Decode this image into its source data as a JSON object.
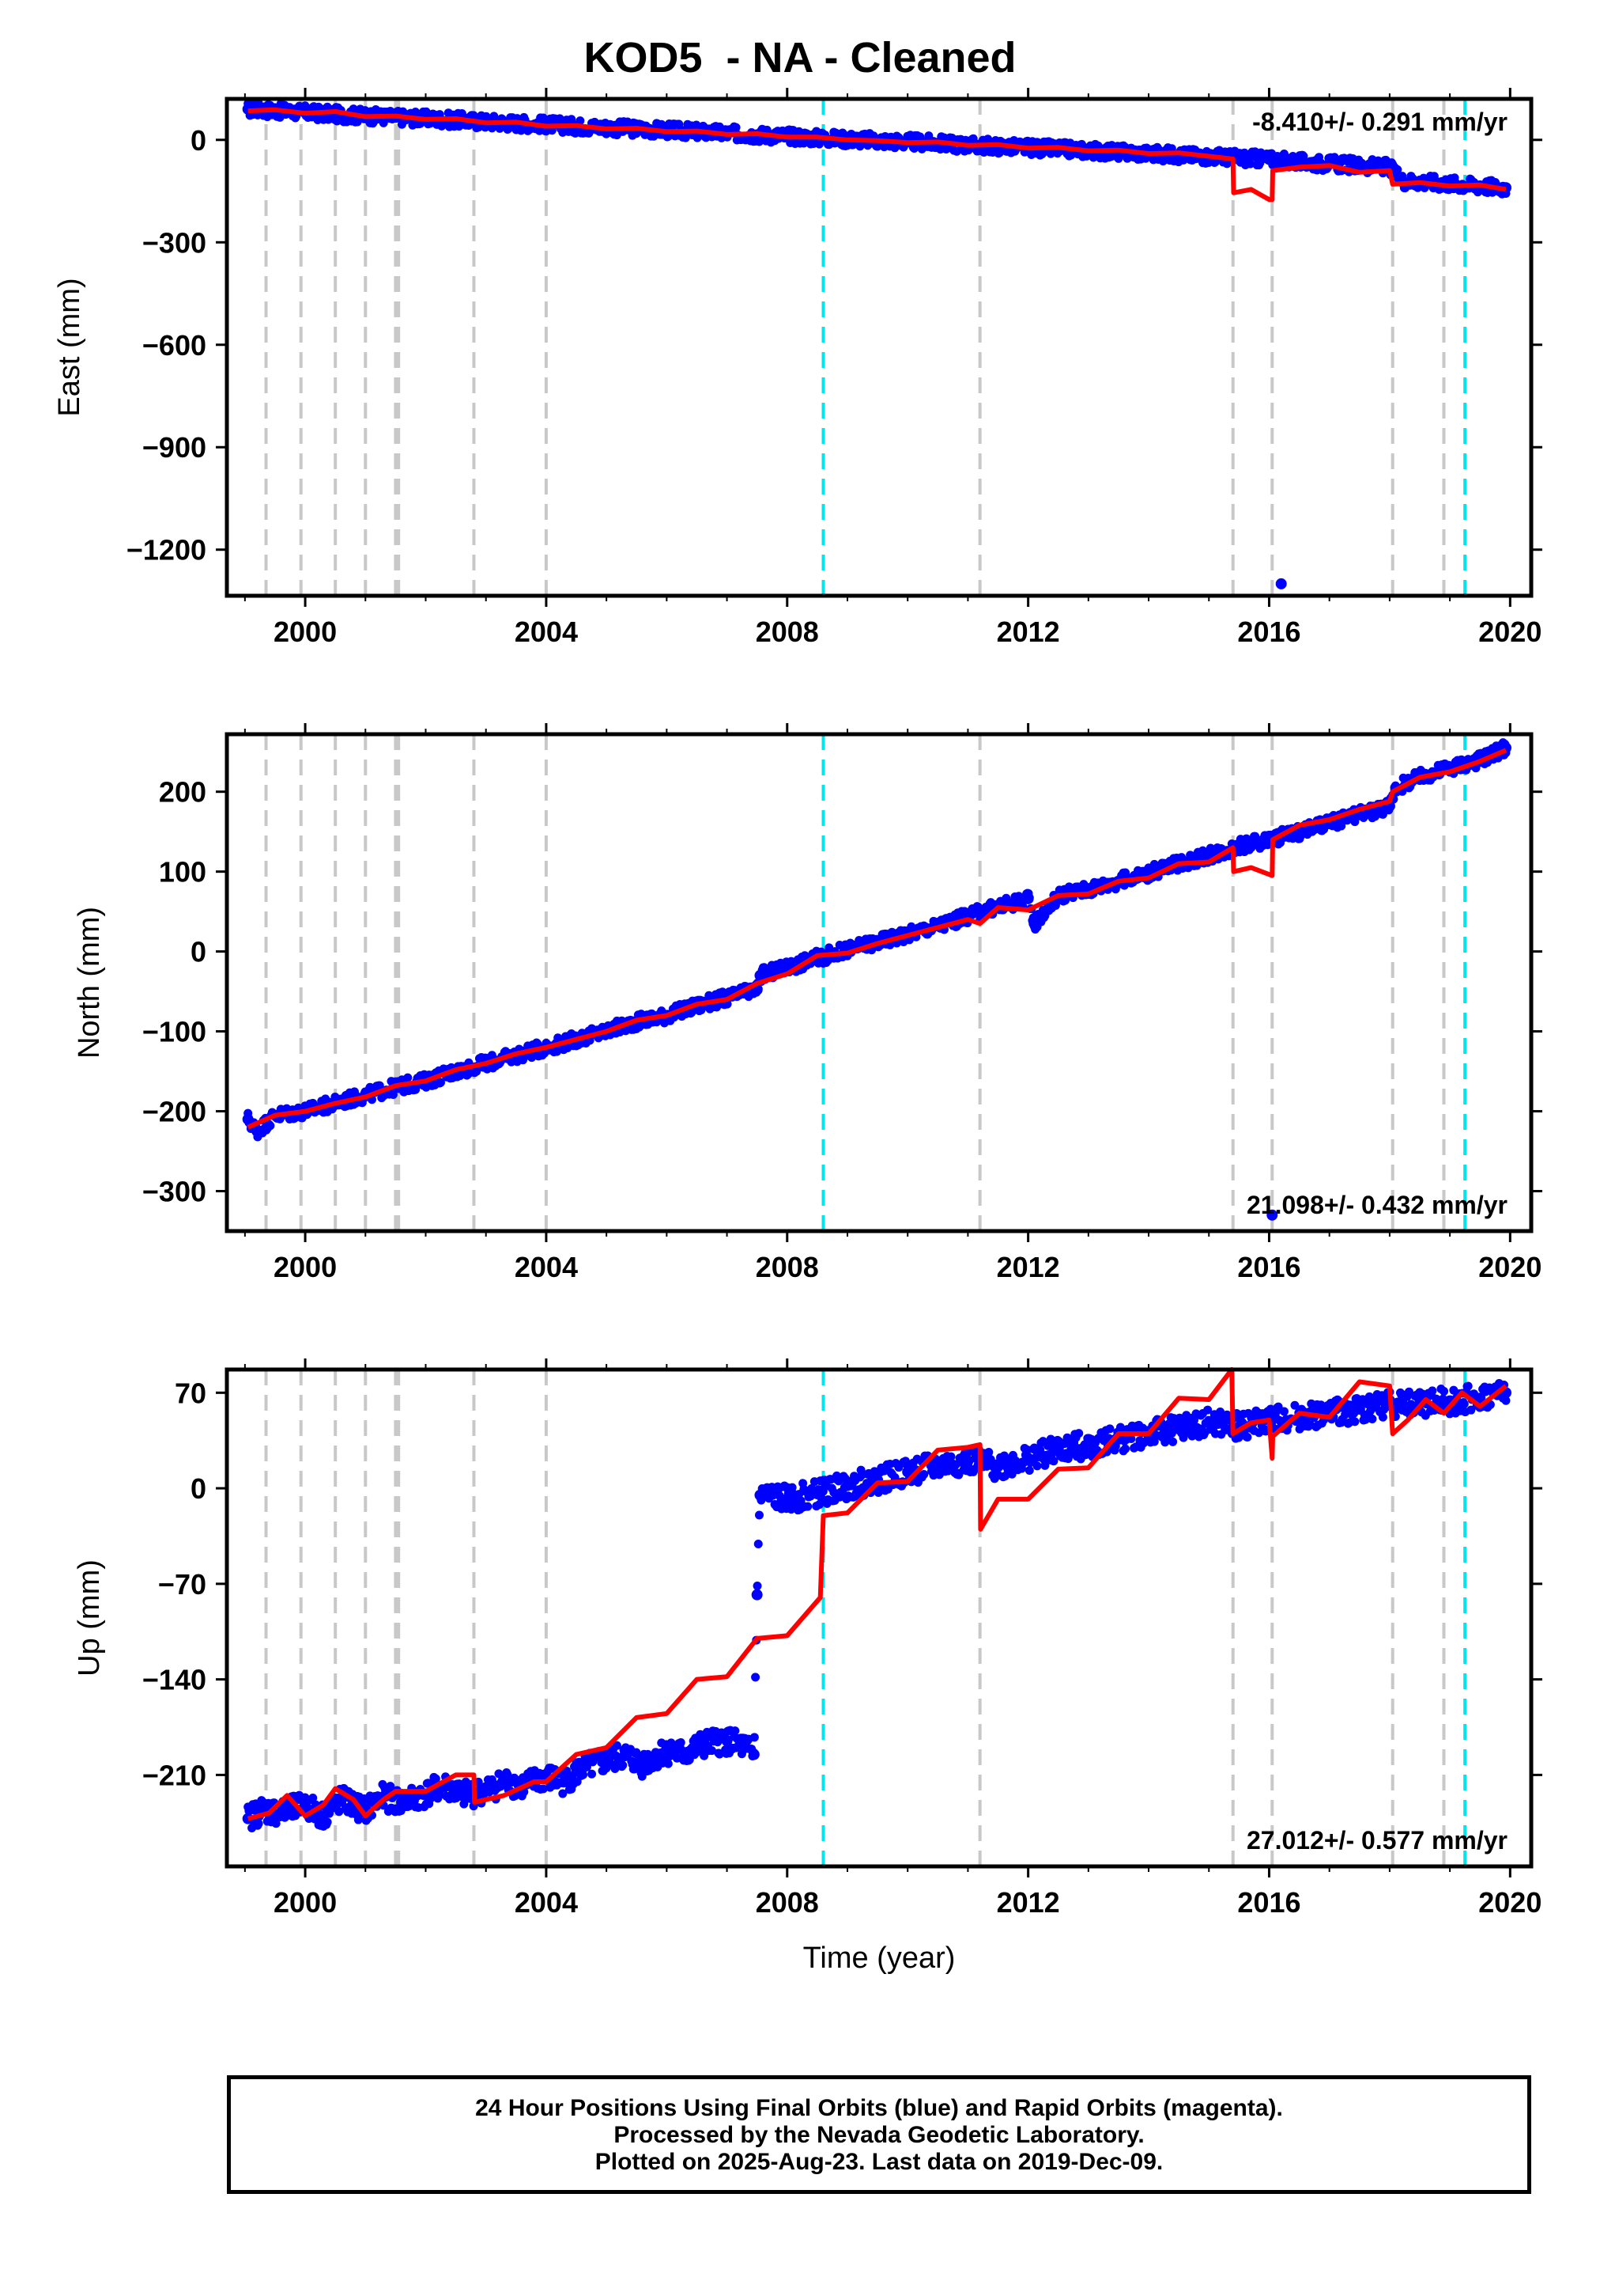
{
  "title": "KOD5  - NA - Cleaned",
  "caption": [
    "24 Hour Positions Using Final Orbits (blue) and Rapid Orbits (magenta).",
    "Processed by the Nevada Geodetic Laboratory.",
    "Plotted on 2025-Aug-23. Last data on 2019-Dec-09."
  ],
  "colors": {
    "final_orbits": "#0000ff",
    "model": "#ff0000",
    "dashed_gray": "#c8c8c8",
    "dashed_cyan": "#00e5ee"
  },
  "chart_data": [
    {
      "type": "scatter",
      "id": "east",
      "ylabel": "East (mm)",
      "xlabel": "",
      "rate": "-8.410+/- 0.291 mm/yr",
      "rate_position": "top-right",
      "xlim": [
        1998.7,
        2020.35
      ],
      "ylim": [
        -1335,
        120
      ],
      "xticks": [
        2000,
        2004,
        2008,
        2012,
        2016,
        2020
      ],
      "yticks": [
        0,
        -300,
        -600,
        -900,
        -1200
      ],
      "series": [
        {
          "kind": "points",
          "x": [
            1999.05,
            1999.3,
            1999.6,
            2000.0,
            2000.5,
            2001.0,
            2001.5,
            2002.0,
            2002.5,
            2003.0,
            2003.5,
            2004.0,
            2004.5,
            2005.0,
            2005.5,
            2006.0,
            2006.5,
            2007.0,
            2007.5,
            2008.0,
            2008.5,
            2009.0,
            2009.5,
            2010.0,
            2010.5,
            2011.0,
            2011.5,
            2012.0,
            2012.5,
            2013.0,
            2013.5,
            2014.0,
            2014.5,
            2015.0,
            2015.5,
            2016.0,
            2016.2,
            2016.5,
            2017.0,
            2017.5,
            2018.0,
            2018.2,
            2018.5,
            2019.0,
            2019.5,
            2019.93
          ],
          "y": [
            90,
            88,
            85,
            80,
            75,
            70,
            66,
            62,
            58,
            53,
            49,
            45,
            40,
            36,
            32,
            28,
            24,
            19,
            15,
            11,
            6,
            2,
            -2,
            -6,
            -10,
            -15,
            -19,
            -23,
            -27,
            -31,
            -36,
            -40,
            -44,
            -48,
            -53,
            -57,
            -1300,
            -65,
            -70,
            -75,
            -80,
            -120,
            -122,
            -128,
            -135,
            -140
          ]
        },
        {
          "kind": "model",
          "x": [
            1999.05,
            1999.5,
            2000.0,
            2000.5,
            2001.0,
            2001.5,
            2002.0,
            2002.5,
            2003.0,
            2003.5,
            2004.0,
            2004.5,
            2005.0,
            2005.5,
            2006.0,
            2006.5,
            2007.0,
            2007.5,
            2008.0,
            2008.5,
            2009.0,
            2009.5,
            2010.0,
            2010.5,
            2011.0,
            2011.5,
            2012.0,
            2012.5,
            2013.0,
            2013.5,
            2014.0,
            2014.5,
            2015.0,
            2015.4,
            2015.41,
            2015.7,
            2016.0,
            2016.05,
            2016.06,
            2016.5,
            2017.0,
            2017.5,
            2018.0,
            2018.05,
            2018.5,
            2019.0,
            2019.5,
            2019.93
          ],
          "y": [
            85,
            88,
            78,
            83,
            68,
            70,
            60,
            62,
            50,
            52,
            40,
            42,
            32,
            34,
            24,
            26,
            16,
            18,
            8,
            8,
            0,
            -2,
            -8,
            -6,
            -16,
            -14,
            -24,
            -22,
            -32,
            -30,
            -40,
            -38,
            -48,
            -56,
            -155,
            -145,
            -175,
            -175,
            -90,
            -80,
            -75,
            -95,
            -90,
            -130,
            -125,
            -135,
            -132,
            -145
          ]
        }
      ],
      "vlines_gray": [
        1999.35,
        1999.93,
        2000.5,
        2001.0,
        2001.5,
        2001.55,
        2002.8,
        2004.0,
        2011.2,
        2015.4,
        2016.05,
        2018.05,
        2018.9
      ],
      "vlines_cyan": [
        2008.6,
        2019.25
      ]
    },
    {
      "type": "scatter",
      "id": "north",
      "ylabel": "North (mm)",
      "xlabel": "",
      "rate": "21.098+/- 0.432 mm/yr",
      "rate_position": "bottom-right",
      "xlim": [
        1998.7,
        2020.35
      ],
      "ylim": [
        -350,
        272
      ],
      "xticks": [
        2000,
        2004,
        2008,
        2012,
        2016,
        2020
      ],
      "yticks": [
        200,
        100,
        0,
        -100,
        -200,
        -300
      ],
      "series": [
        {
          "kind": "points",
          "x": [
            1999.05,
            1999.2,
            1999.5,
            2000.0,
            2000.5,
            2001.0,
            2001.5,
            2002.0,
            2002.5,
            2003.0,
            2003.5,
            2004.0,
            2004.5,
            2005.0,
            2005.5,
            2006.0,
            2006.5,
            2007.0,
            2007.5,
            2007.55,
            2008.0,
            2008.5,
            2009.0,
            2009.5,
            2010.0,
            2010.5,
            2011.0,
            2011.5,
            2012.0,
            2012.1,
            2012.5,
            2013.0,
            2013.5,
            2014.0,
            2014.5,
            2015.0,
            2015.5,
            2016.0,
            2016.05,
            2016.5,
            2017.0,
            2017.5,
            2018.0,
            2018.1,
            2018.5,
            2019.0,
            2019.5,
            2019.93
          ],
          "y": [
            -210,
            -225,
            -205,
            -200,
            -190,
            -180,
            -170,
            -162,
            -150,
            -140,
            -130,
            -120,
            -110,
            -100,
            -88,
            -80,
            -68,
            -58,
            -48,
            -30,
            -20,
            -8,
            2,
            12,
            22,
            32,
            44,
            56,
            66,
            35,
            70,
            78,
            88,
            98,
            110,
            120,
            132,
            140,
            -330,
            150,
            160,
            172,
            182,
            205,
            218,
            230,
            240,
            255
          ]
        },
        {
          "kind": "model",
          "x": [
            1999.05,
            1999.5,
            2000.0,
            2000.5,
            2001.0,
            2001.5,
            2002.0,
            2002.5,
            2003.0,
            2003.5,
            2004.0,
            2004.5,
            2005.0,
            2005.5,
            2006.0,
            2006.5,
            2007.0,
            2007.5,
            2008.0,
            2008.5,
            2009.0,
            2009.5,
            2010.0,
            2010.5,
            2011.0,
            2011.2,
            2011.5,
            2012.0,
            2012.5,
            2013.0,
            2013.5,
            2014.0,
            2014.5,
            2015.0,
            2015.4,
            2015.41,
            2015.7,
            2016.05,
            2016.06,
            2016.5,
            2017.0,
            2017.5,
            2018.0,
            2018.05,
            2018.5,
            2019.0,
            2019.5,
            2019.93
          ],
          "y": [
            -220,
            -205,
            -200,
            -190,
            -182,
            -168,
            -162,
            -148,
            -140,
            -128,
            -120,
            -110,
            -100,
            -86,
            -80,
            -66,
            -60,
            -40,
            -28,
            -5,
            -2,
            10,
            20,
            30,
            40,
            35,
            55,
            52,
            70,
            72,
            88,
            92,
            110,
            112,
            130,
            100,
            105,
            95,
            140,
            158,
            165,
            178,
            188,
            200,
            218,
            225,
            238,
            252
          ]
        }
      ],
      "vlines_gray": [
        1999.35,
        1999.93,
        2000.5,
        2001.0,
        2001.5,
        2001.55,
        2002.8,
        2004.0,
        2011.2,
        2015.4,
        2016.05,
        2018.05,
        2018.9
      ],
      "vlines_cyan": [
        2008.6,
        2019.25
      ]
    },
    {
      "type": "scatter",
      "id": "up",
      "ylabel": "Up (mm)",
      "xlabel": "Time (year)",
      "rate": "27.012+/- 0.577 mm/yr",
      "rate_position": "bottom-right",
      "xlim": [
        1998.7,
        2020.35
      ],
      "ylim": [
        -277,
        87
      ],
      "xticks": [
        2000,
        2004,
        2008,
        2012,
        2016,
        2020
      ],
      "yticks": [
        70,
        0,
        -70,
        -140,
        -210
      ],
      "series": [
        {
          "kind": "points",
          "x": [
            1999.05,
            1999.3,
            1999.6,
            2000.0,
            2000.3,
            2000.6,
            2001.0,
            2001.3,
            2001.6,
            2002.0,
            2002.3,
            2002.6,
            2003.0,
            2003.3,
            2003.6,
            2004.0,
            2004.3,
            2004.6,
            2005.0,
            2005.3,
            2005.6,
            2006.0,
            2006.3,
            2006.6,
            2007.0,
            2007.3,
            2007.45,
            2007.5,
            2007.55,
            2008.0,
            2008.5,
            2009.0,
            2009.5,
            2010.0,
            2010.5,
            2011.0,
            2011.5,
            2012.0,
            2012.5,
            2013.0,
            2013.5,
            2014.0,
            2014.5,
            2015.0,
            2015.5,
            2016.0,
            2016.5,
            2017.0,
            2017.5,
            2018.0,
            2018.5,
            2019.0,
            2019.5,
            2019.93
          ],
          "y": [
            -242,
            -235,
            -238,
            -232,
            -240,
            -228,
            -236,
            -226,
            -230,
            -224,
            -218,
            -225,
            -222,
            -215,
            -218,
            -212,
            -215,
            -205,
            -200,
            -196,
            -202,
            -192,
            -195,
            -188,
            -185,
            -190,
            -195,
            -78,
            -5,
            -8,
            -4,
            2,
            6,
            12,
            16,
            20,
            16,
            22,
            28,
            32,
            36,
            40,
            44,
            48,
            45,
            50,
            52,
            55,
            58,
            62,
            62,
            64,
            66,
            70
          ]
        },
        {
          "kind": "model",
          "x": [
            1999.05,
            1999.4,
            1999.7,
            2000.0,
            2000.3,
            2000.5,
            2000.8,
            2001.0,
            2001.3,
            2001.5,
            2002.0,
            2002.5,
            2002.8,
            2002.81,
            2003.3,
            2003.8,
            2004.0,
            2004.5,
            2005.0,
            2005.5,
            2006.0,
            2006.5,
            2007.0,
            2007.5,
            2008.0,
            2008.55,
            2008.6,
            2009.0,
            2009.5,
            2010.0,
            2010.5,
            2011.0,
            2011.2,
            2011.21,
            2011.5,
            2012.0,
            2012.5,
            2013.0,
            2013.5,
            2014.0,
            2014.5,
            2015.0,
            2015.38,
            2015.4,
            2015.7,
            2016.0,
            2016.05,
            2016.06,
            2016.5,
            2017.0,
            2017.5,
            2018.0,
            2018.05,
            2018.3,
            2018.6,
            2018.9,
            2019.2,
            2019.5,
            2019.93
          ],
          "y": [
            -242,
            -238,
            -225,
            -240,
            -232,
            -220,
            -228,
            -240,
            -228,
            -222,
            -222,
            -210,
            -210,
            -230,
            -225,
            -215,
            -215,
            -195,
            -190,
            -168,
            -165,
            -140,
            -138,
            -110,
            -108,
            -80,
            -20,
            -18,
            4,
            5,
            28,
            30,
            32,
            -30,
            -8,
            -8,
            14,
            15,
            40,
            40,
            66,
            65,
            87,
            40,
            48,
            50,
            22,
            38,
            55,
            52,
            78,
            75,
            40,
            50,
            65,
            55,
            70,
            60,
            75
          ]
        }
      ],
      "vlines_gray": [
        1999.35,
        1999.93,
        2000.5,
        2001.0,
        2001.5,
        2001.55,
        2002.8,
        2004.0,
        2011.2,
        2015.4,
        2016.05,
        2018.05,
        2018.9
      ],
      "vlines_cyan": [
        2008.6,
        2019.25
      ]
    }
  ]
}
